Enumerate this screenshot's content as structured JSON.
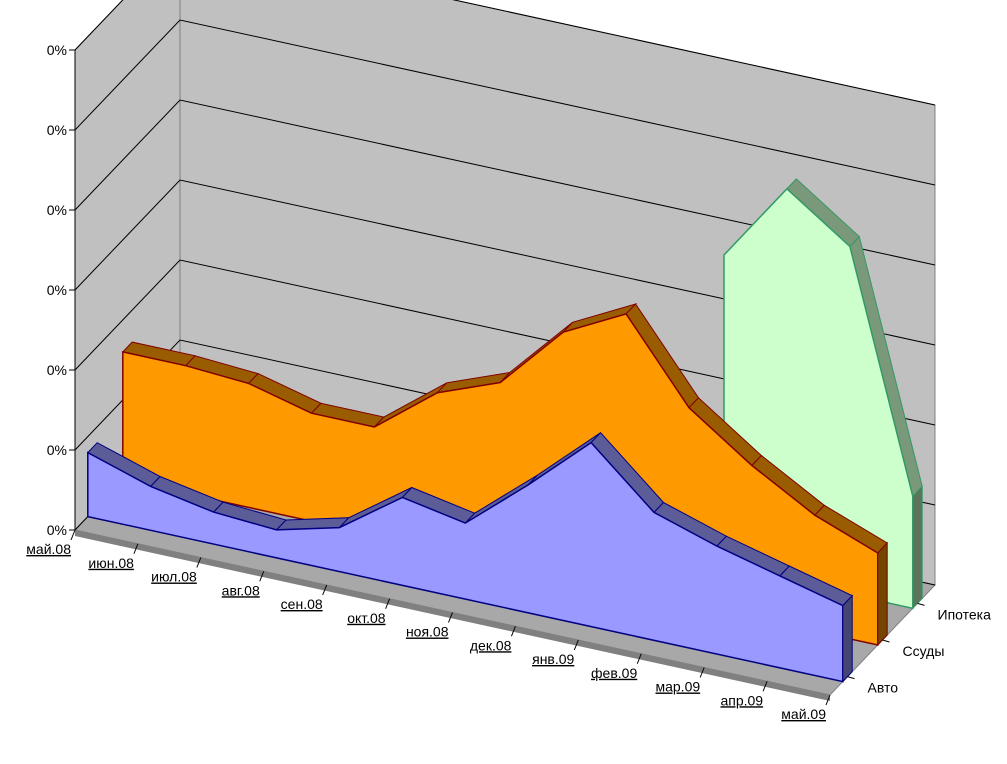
{
  "chart_data": {
    "type": "area",
    "style": "3d",
    "title": "",
    "xlabel": "",
    "ylabel": "",
    "categories": [
      "май.08",
      "июн.08",
      "июл.08",
      "авг.08",
      "сен.08",
      "окт.08",
      "ноя.08",
      "дек.08",
      "янв.09",
      "фев.09",
      "мар.09",
      "апр.09",
      "май.09"
    ],
    "y_ticks": [
      "0%",
      "0%",
      "0%",
      "0%",
      "0%",
      "0%",
      "0%"
    ],
    "ylim": [
      0,
      6
    ],
    "grid": true,
    "series": [
      {
        "name": "Авто",
        "color": "#9999ff",
        "values": [
          0.8,
          0.55,
          0.4,
          0.35,
          0.55,
          1.1,
          0.95,
          1.6,
          2.3,
          1.6,
          1.35,
          1.15,
          0.95
        ]
      },
      {
        "name": "Ссуды",
        "color": "#ff9900",
        "values": [
          1.6,
          1.6,
          1.55,
          1.35,
          1.35,
          1.95,
          2.25,
          3.05,
          3.45,
          2.45,
          1.9,
          1.45,
          1.15
        ]
      },
      {
        "name": "Ипотека",
        "color": "#ccffcc",
        "values": [
          null,
          null,
          null,
          null,
          null,
          null,
          null,
          null,
          null,
          3.9,
          4.9,
          4.35,
          1.4
        ]
      }
    ]
  }
}
